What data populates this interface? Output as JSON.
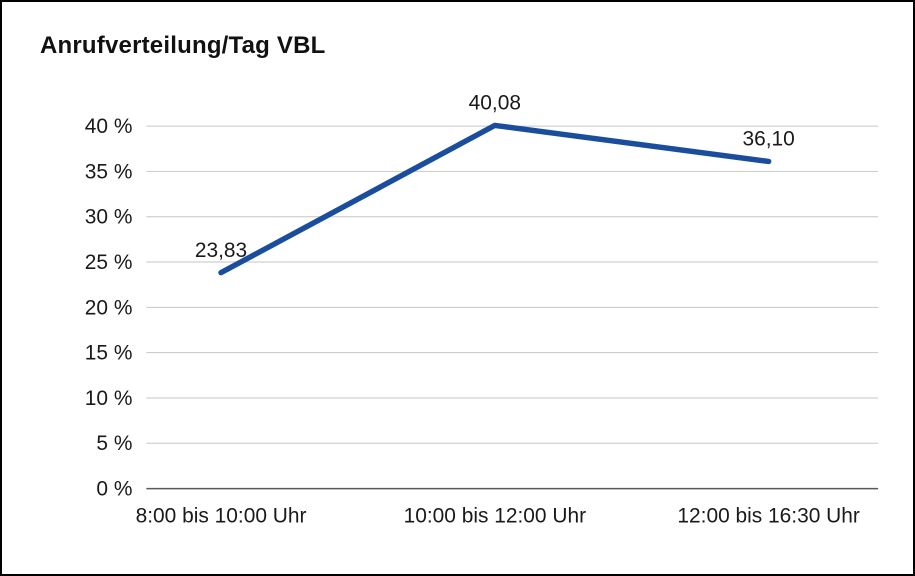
{
  "chart": {
    "title": "Anrufverteilung/Tag VBL"
  },
  "chart_data": {
    "type": "line",
    "title": "Anrufverteilung/Tag VBL",
    "categories": [
      "8:00 bis 10:00 Uhr",
      "10:00 bis 12:00 Uhr",
      "12:00 bis 16:30 Uhr"
    ],
    "values": [
      23.83,
      40.08,
      36.1
    ],
    "data_labels": [
      "23,83",
      "40,08",
      "36,10"
    ],
    "xlabel": "",
    "ylabel": "",
    "ylim": [
      0,
      40
    ],
    "ytick_step": 5,
    "ytick_labels": [
      "0 %",
      "5 %",
      "10 %",
      "15 %",
      "20 %",
      "25 %",
      "30 %",
      "35 %",
      "40 %"
    ],
    "grid": "horizontal",
    "legend": "none",
    "line_color": "#1a4e9d"
  }
}
